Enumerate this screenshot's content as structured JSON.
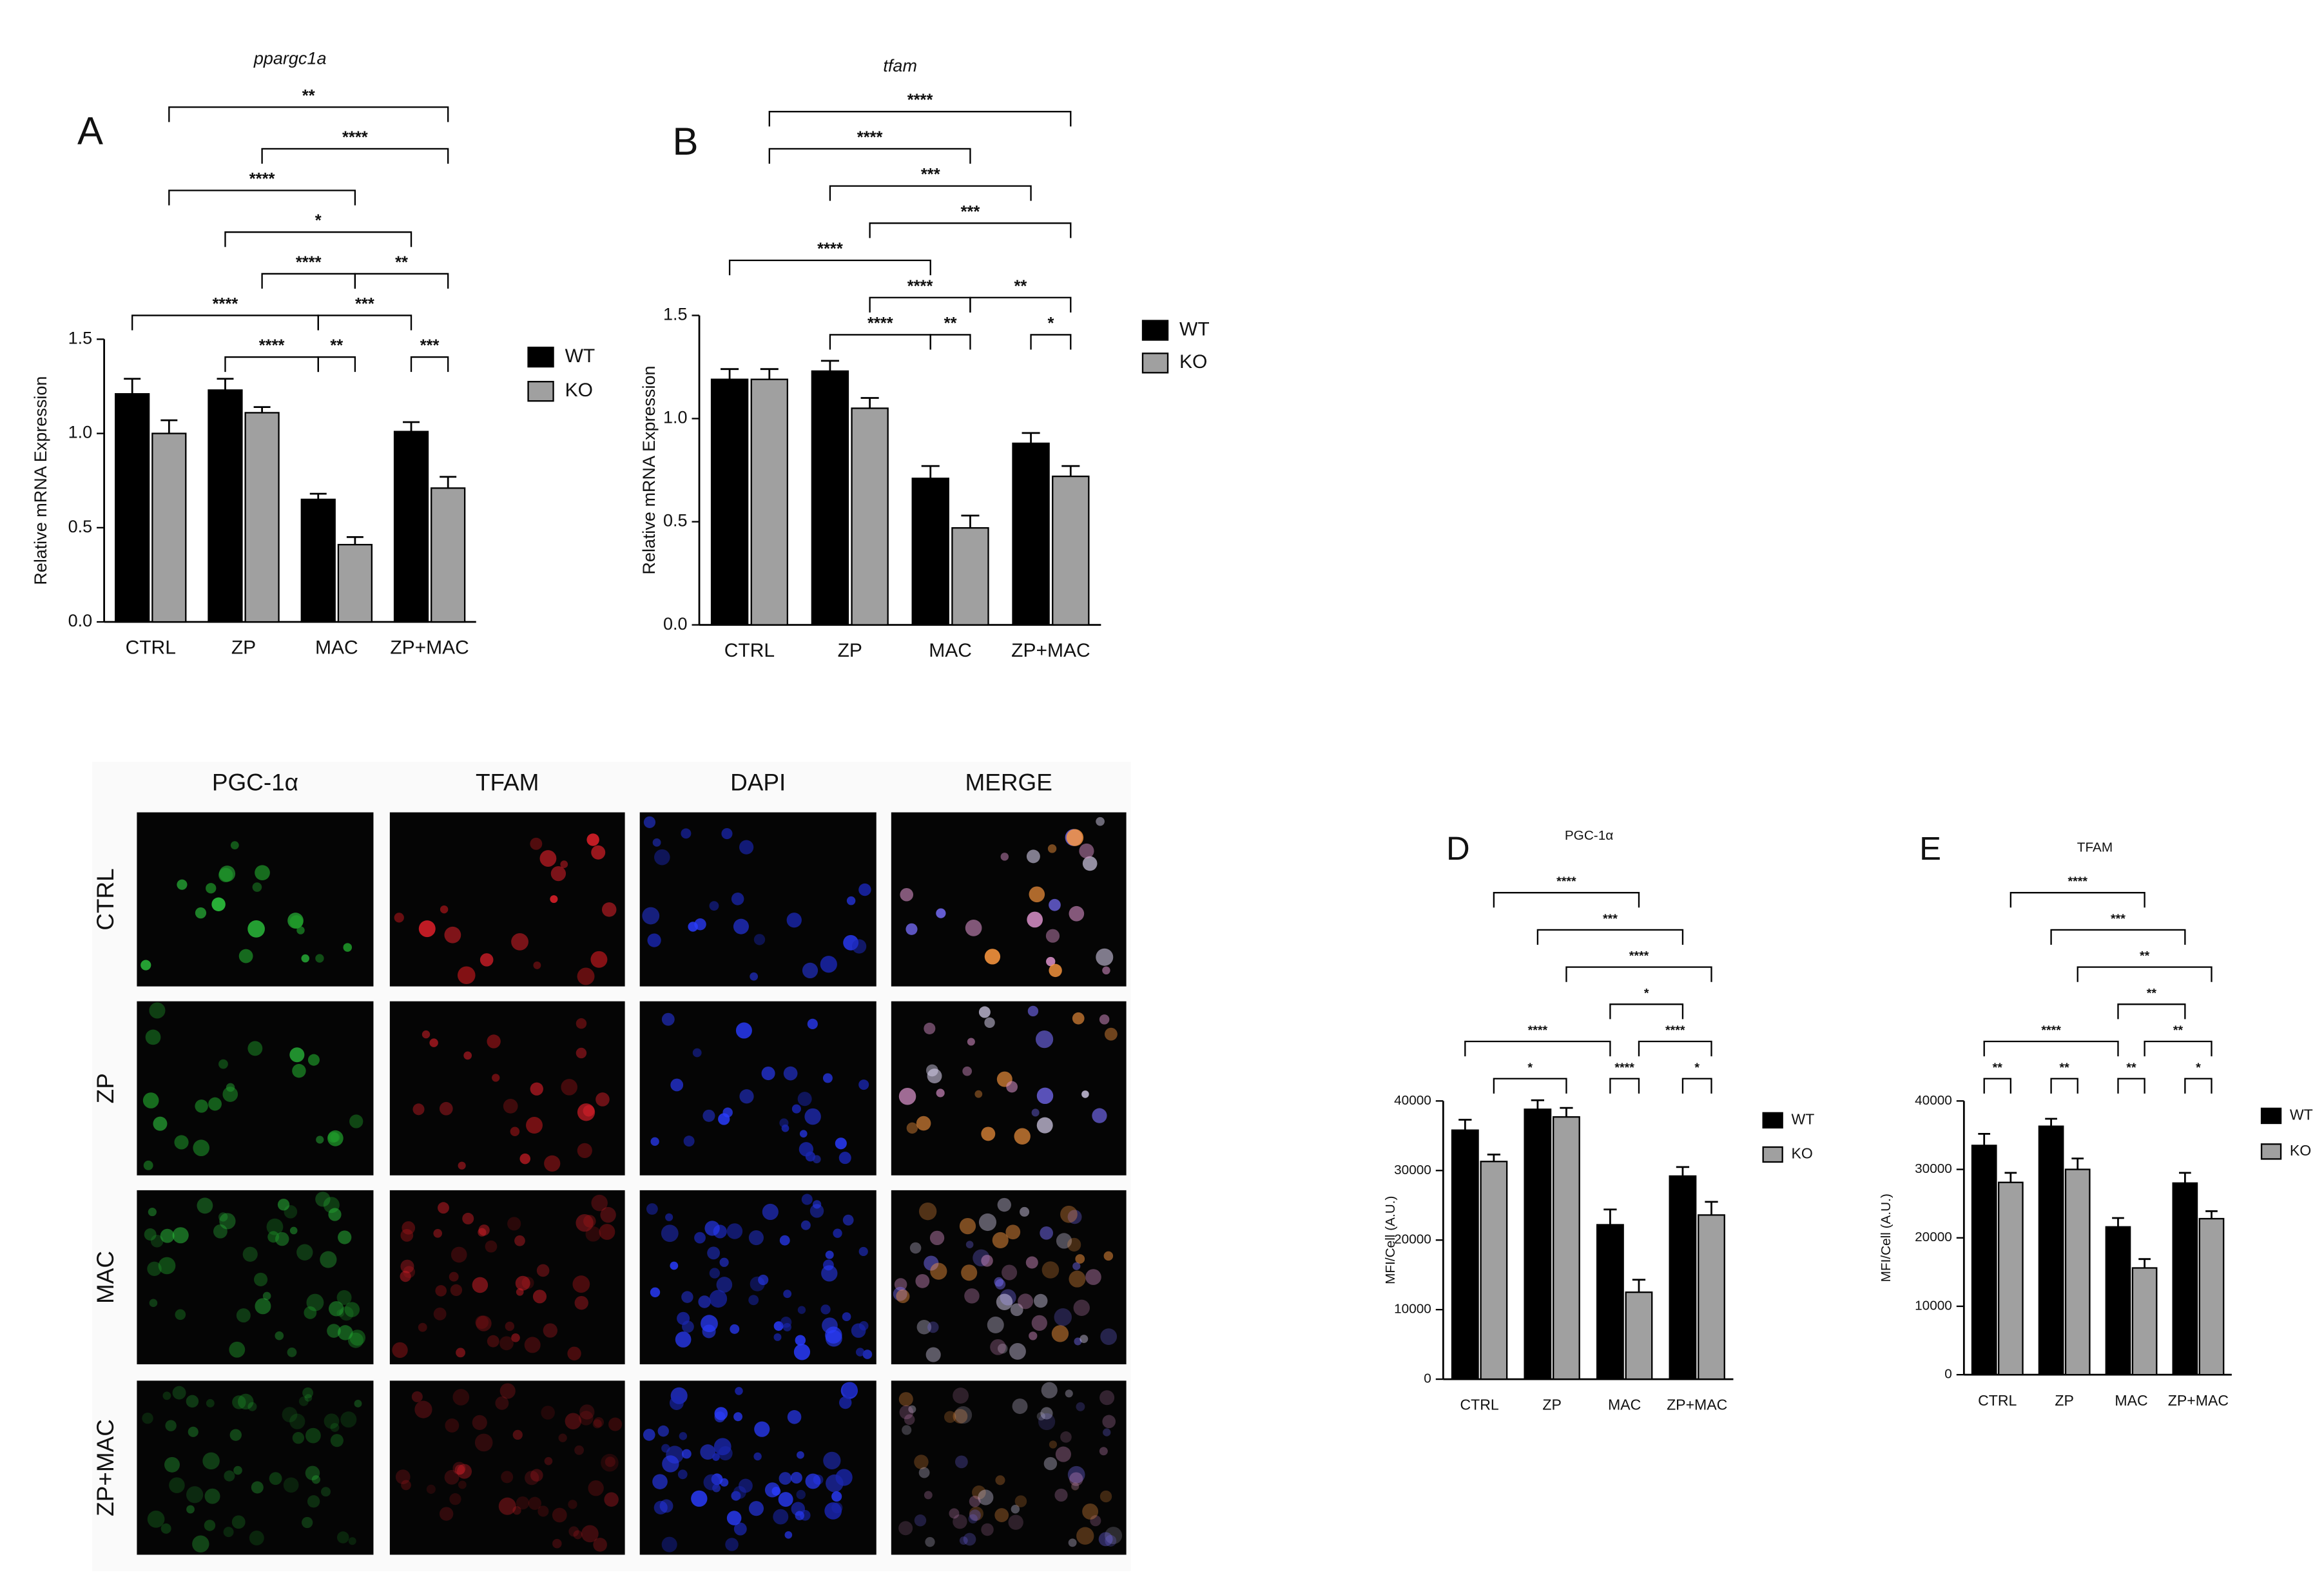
{
  "chart_data": [
    {
      "type": "bar",
      "panel": "A",
      "title": "ppargc1a",
      "y_label": "Relative mRNA Expression",
      "categories": [
        "CTRL",
        "ZP",
        "MAC",
        "ZP+MAC"
      ],
      "series": [
        {
          "name": "WT",
          "color": "#000000",
          "values": [
            1.21,
            1.23,
            0.65,
            1.01
          ],
          "errors": [
            0.08,
            0.06,
            0.03,
            0.05
          ]
        },
        {
          "name": "KO",
          "color": "#a0a0a0",
          "values": [
            1.0,
            1.11,
            0.41,
            0.71
          ],
          "errors": [
            0.07,
            0.03,
            0.04,
            0.06
          ]
        }
      ],
      "ylim": [
        0,
        1.5
      ],
      "yticks": [
        {
          "value": 0,
          "label": "0.0"
        },
        {
          "value": 0.5,
          "label": "0.5"
        },
        {
          "value": 1,
          "label": "1.0"
        },
        {
          "value": 1.5,
          "label": "1.5"
        }
      ],
      "annotations": [
        "**",
        "****",
        "****",
        "*",
        "****",
        "**",
        "****",
        "***",
        "****",
        "**",
        "***"
      ]
    },
    {
      "type": "bar",
      "panel": "B",
      "title": "tfam",
      "y_label": "Relative mRNA Expression",
      "categories": [
        "CTRL",
        "ZP",
        "MAC",
        "ZP+MAC"
      ],
      "series": [
        {
          "name": "WT",
          "color": "#000000",
          "values": [
            1.19,
            1.23,
            0.71,
            0.88
          ],
          "errors": [
            0.05,
            0.05,
            0.06,
            0.05
          ]
        },
        {
          "name": "KO",
          "color": "#a0a0a0",
          "values": [
            1.19,
            1.05,
            0.47,
            0.72
          ],
          "errors": [
            0.05,
            0.05,
            0.06,
            0.05
          ]
        }
      ],
      "ylim": [
        0,
        1.5
      ],
      "yticks": [
        {
          "value": 0,
          "label": "0.0"
        },
        {
          "value": 0.5,
          "label": "0.5"
        },
        {
          "value": 1,
          "label": "1.0"
        },
        {
          "value": 1.5,
          "label": "1.5"
        }
      ],
      "annotations": [
        "****",
        "****",
        "***",
        "***",
        "****",
        "****",
        "**",
        "****",
        "**",
        "*"
      ]
    },
    {
      "type": "bar",
      "panel": "D",
      "title": "PGC-1α",
      "y_label": "MFI/Cell (A.U.)",
      "categories": [
        "CTRL",
        "ZP",
        "MAC",
        "ZP+MAC"
      ],
      "series": [
        {
          "name": "WT",
          "color": "#000000",
          "values": [
            35800,
            38800,
            22200,
            29200
          ],
          "errors": [
            1500,
            1300,
            2200,
            1300
          ]
        },
        {
          "name": "KO",
          "color": "#a0a0a0",
          "values": [
            31300,
            37700,
            12500,
            23600
          ],
          "errors": [
            1000,
            1300,
            1800,
            1900
          ]
        }
      ],
      "ylim": [
        0,
        40000
      ],
      "yticks": [
        0,
        10000,
        20000,
        30000,
        40000
      ],
      "annotations": [
        "****",
        "***",
        "****",
        "*",
        "****",
        "****",
        "*",
        "****",
        "*"
      ]
    },
    {
      "type": "bar",
      "panel": "E",
      "title": "TFAM",
      "y_label": "MFI/Cell (A.U.)",
      "categories": [
        "CTRL",
        "ZP",
        "MAC",
        "ZP+MAC"
      ],
      "series": [
        {
          "name": "WT",
          "color": "#000000",
          "values": [
            33500,
            36300,
            21600,
            28000
          ],
          "errors": [
            1700,
            1100,
            1300,
            1500
          ]
        },
        {
          "name": "KO",
          "color": "#a0a0a0",
          "values": [
            28100,
            30000,
            15600,
            22800
          ],
          "errors": [
            1400,
            1600,
            1300,
            1100
          ]
        }
      ],
      "ylim": [
        0,
        40000
      ],
      "yticks": [
        0,
        10000,
        20000,
        30000,
        40000
      ],
      "annotations": [
        "****",
        "***",
        "**",
        "**",
        "****",
        "**",
        "**",
        "**",
        "**",
        "*"
      ]
    }
  ],
  "micrograph": {
    "columns": [
      "PGC-1α",
      "TFAM",
      "DAPI",
      "MERGE"
    ],
    "rows": [
      "CTRL",
      "ZP",
      "MAC",
      "ZP+MAC"
    ]
  }
}
